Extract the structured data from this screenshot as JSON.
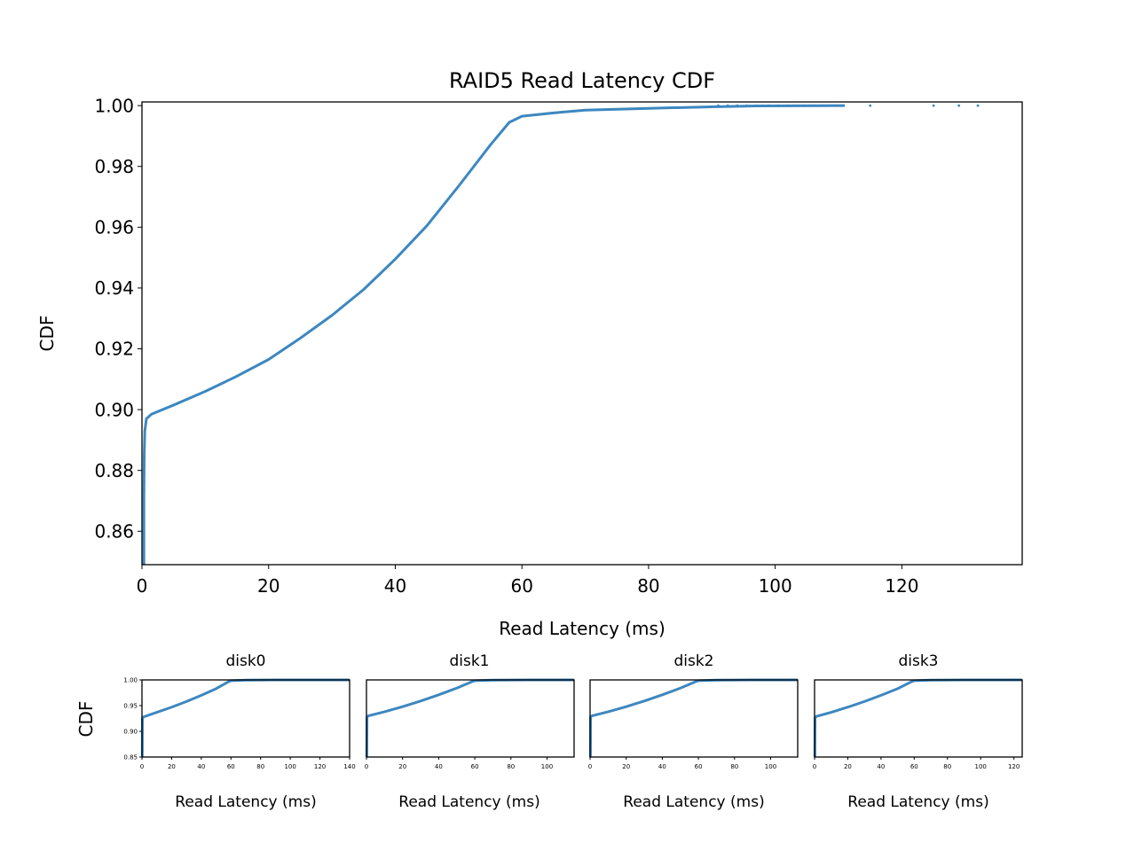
{
  "colors": {
    "series": "#3d87c0",
    "axes": "#000000",
    "background": "#ffffff"
  },
  "chart_data": [
    {
      "type": "line",
      "title": "RAID5 Read Latency CDF",
      "xlabel": "Read Latency (ms)",
      "ylabel": "CDF",
      "xlim": [
        0,
        139
      ],
      "ylim": [
        0.849,
        1.0012
      ],
      "x_ticks": [
        0,
        20,
        40,
        60,
        80,
        100,
        120
      ],
      "x_tick_labels": [
        "0",
        "20",
        "40",
        "60",
        "80",
        "100",
        "120"
      ],
      "y_ticks": [
        0.86,
        0.88,
        0.9,
        0.92,
        0.94,
        0.96,
        0.98,
        1.0
      ],
      "y_tick_labels": [
        "0.86",
        "0.88",
        "0.90",
        "0.92",
        "0.94",
        "0.96",
        "0.98",
        "1.00"
      ],
      "grid": false,
      "series": [
        {
          "points": [
            [
              0.3,
              0.849
            ],
            [
              0.3,
              0.87
            ],
            [
              0.35,
              0.885
            ],
            [
              0.45,
              0.893
            ],
            [
              0.7,
              0.897
            ],
            [
              1.5,
              0.8985
            ],
            [
              5,
              0.9015
            ],
            [
              10,
              0.906
            ],
            [
              15,
              0.911
            ],
            [
              20,
              0.9165
            ],
            [
              25,
              0.9235
            ],
            [
              30,
              0.931
            ],
            [
              35,
              0.9395
            ],
            [
              40,
              0.9495
            ],
            [
              45,
              0.9605
            ],
            [
              50,
              0.9735
            ],
            [
              55,
              0.987
            ],
            [
              58,
              0.9945
            ],
            [
              60,
              0.9965
            ],
            [
              65,
              0.9976
            ],
            [
              70,
              0.9985
            ],
            [
              80,
              0.9991
            ],
            [
              90,
              0.9996
            ],
            [
              97,
              0.9999
            ],
            [
              111,
              1.0
            ]
          ],
          "outliers_x": [
            91,
            92.5,
            94,
            95.5,
            97,
            98,
            99,
            100.5,
            102,
            103,
            104.5,
            106,
            107.5,
            108.5,
            109.5,
            110.5,
            115,
            125,
            129,
            132
          ]
        }
      ]
    },
    {
      "type": "line",
      "title": "disk0",
      "xlabel": "Read Latency (ms)",
      "ylabel": "CDF",
      "xlim": [
        0,
        140
      ],
      "ylim": [
        0.85,
        1.0
      ],
      "x_ticks": [
        0,
        20,
        40,
        60,
        80,
        100,
        120,
        140
      ],
      "x_tick_labels": [
        "0",
        "20",
        "40",
        "60",
        "80",
        "100",
        "120",
        "140"
      ],
      "y_ticks": [
        0.85,
        0.9,
        0.95,
        1.0
      ],
      "y_tick_labels": [
        "0.85",
        "0.90",
        "0.95",
        "1.00"
      ],
      "series": [
        {
          "points": [
            [
              0.2,
              0.85
            ],
            [
              0.3,
              0.925
            ],
            [
              1,
              0.928
            ],
            [
              10,
              0.937
            ],
            [
              20,
              0.947
            ],
            [
              30,
              0.958
            ],
            [
              40,
              0.97
            ],
            [
              50,
              0.983
            ],
            [
              58,
              0.996
            ],
            [
              60,
              0.9985
            ],
            [
              70,
              0.9995
            ],
            [
              90,
              1.0
            ],
            [
              140,
              1.0
            ]
          ]
        }
      ]
    },
    {
      "type": "line",
      "title": "disk1",
      "xlabel": "Read Latency (ms)",
      "xlim": [
        0,
        115
      ],
      "ylim": [
        0.85,
        1.0
      ],
      "x_ticks": [
        0,
        20,
        40,
        60,
        80,
        100
      ],
      "x_tick_labels": [
        "0",
        "20",
        "40",
        "60",
        "80",
        "100"
      ],
      "series": [
        {
          "points": [
            [
              0.2,
              0.85
            ],
            [
              0.3,
              0.928
            ],
            [
              1,
              0.93
            ],
            [
              10,
              0.938
            ],
            [
              20,
              0.948
            ],
            [
              30,
              0.959
            ],
            [
              40,
              0.971
            ],
            [
              50,
              0.984
            ],
            [
              58,
              0.996
            ],
            [
              60,
              0.9985
            ],
            [
              70,
              0.9995
            ],
            [
              90,
              1.0
            ],
            [
              115,
              1.0
            ]
          ]
        }
      ]
    },
    {
      "type": "line",
      "title": "disk2",
      "xlabel": "Read Latency (ms)",
      "xlim": [
        0,
        115
      ],
      "ylim": [
        0.85,
        1.0
      ],
      "x_ticks": [
        0,
        20,
        40,
        60,
        80,
        100
      ],
      "x_tick_labels": [
        "0",
        "20",
        "40",
        "60",
        "80",
        "100"
      ],
      "series": [
        {
          "points": [
            [
              0.2,
              0.85
            ],
            [
              0.3,
              0.928
            ],
            [
              1,
              0.93
            ],
            [
              10,
              0.938
            ],
            [
              20,
              0.948
            ],
            [
              30,
              0.959
            ],
            [
              40,
              0.971
            ],
            [
              50,
              0.984
            ],
            [
              58,
              0.996
            ],
            [
              60,
              0.9985
            ],
            [
              70,
              0.9995
            ],
            [
              90,
              1.0
            ],
            [
              115,
              1.0
            ]
          ]
        }
      ]
    },
    {
      "type": "line",
      "title": "disk3",
      "xlabel": "Read Latency (ms)",
      "xlim": [
        0,
        125
      ],
      "ylim": [
        0.85,
        1.0
      ],
      "x_ticks": [
        0,
        20,
        40,
        60,
        80,
        100,
        120
      ],
      "x_tick_labels": [
        "0",
        "20",
        "40",
        "60",
        "80",
        "100",
        "120"
      ],
      "series": [
        {
          "points": [
            [
              0.2,
              0.85
            ],
            [
              0.3,
              0.926
            ],
            [
              1,
              0.929
            ],
            [
              10,
              0.937
            ],
            [
              20,
              0.947
            ],
            [
              30,
              0.958
            ],
            [
              40,
              0.97
            ],
            [
              50,
              0.983
            ],
            [
              58,
              0.996
            ],
            [
              60,
              0.9985
            ],
            [
              70,
              0.9995
            ],
            [
              90,
              1.0
            ],
            [
              125,
              1.0
            ]
          ]
        }
      ]
    }
  ]
}
